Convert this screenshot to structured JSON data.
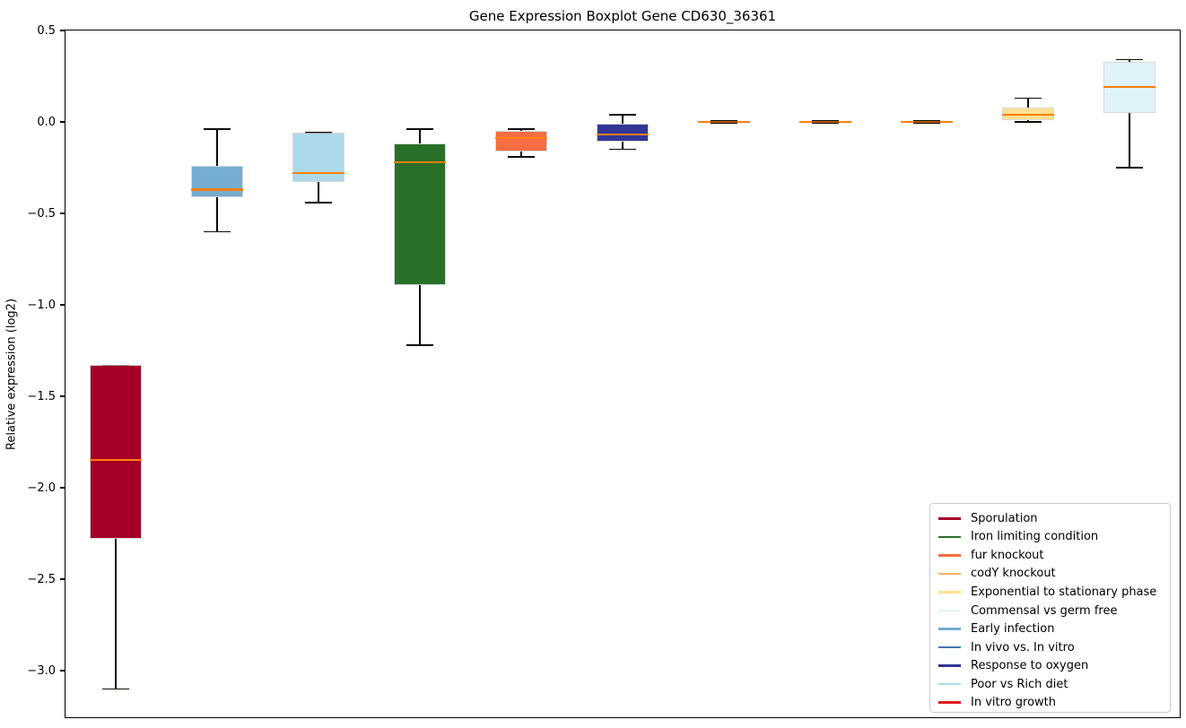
{
  "title": "Gene Expression Boxplot Gene CD630_36361",
  "chart_data": {
    "type": "boxplot",
    "title": "Gene Expression Boxplot Gene CD630_36361",
    "xlabel": "",
    "ylabel": "Relative expression (log2)",
    "ylim": [
      -3.26,
      0.5
    ],
    "yticks": [
      0.5,
      0.0,
      -0.5,
      -1.0,
      -1.5,
      -2.0,
      -2.5,
      -3.0
    ],
    "grid": false,
    "legend_position": "lower right",
    "median_color": "#ff7f0e",
    "whisker_color": "#000000",
    "box_edge_color": "#d9d9d9",
    "series": [
      {
        "name": "Sporulation",
        "color": "#a50026",
        "whisker_low": -3.1,
        "q1": -2.28,
        "median": -1.85,
        "q3": -1.33,
        "whisker_high": -1.33
      },
      {
        "name": "Early infection",
        "color": "#74add1",
        "whisker_low": -0.6,
        "q1": -0.41,
        "median": -0.37,
        "q3": -0.24,
        "whisker_high": -0.04
      },
      {
        "name": "Poor vs Rich diet",
        "color": "#abd9e9",
        "whisker_low": -0.44,
        "q1": -0.33,
        "median": -0.28,
        "q3": -0.06,
        "whisker_high": -0.06
      },
      {
        "name": "Iron limiting condition",
        "color": "#287028",
        "whisker_low": -1.22,
        "q1": -0.89,
        "median": -0.22,
        "q3": -0.12,
        "whisker_high": -0.04
      },
      {
        "name": "fur knockout",
        "color": "#f46d43",
        "whisker_low": -0.19,
        "q1": -0.16,
        "median": -0.09,
        "q3": -0.05,
        "whisker_high": -0.04
      },
      {
        "name": "Response to oxygen",
        "color": "#313695",
        "whisker_low": -0.15,
        "q1": -0.11,
        "median": -0.07,
        "q3": -0.01,
        "whisker_high": 0.04
      },
      {
        "name": "codY knockout",
        "color": "#fdae61",
        "whisker_low": -0.005,
        "q1": -0.005,
        "median": 0.0,
        "q3": 0.005,
        "whisker_high": 0.005
      },
      {
        "name": "In vivo vs. In vitro",
        "color": "#4575b4",
        "whisker_low": -0.005,
        "q1": -0.005,
        "median": 0.0,
        "q3": 0.005,
        "whisker_high": 0.005
      },
      {
        "name": "In vitro growth",
        "color": "#e41a1c",
        "whisker_low": -0.005,
        "q1": -0.005,
        "median": 0.0,
        "q3": 0.005,
        "whisker_high": 0.005
      },
      {
        "name": "Exponential to stationary phase",
        "color": "#fee090",
        "whisker_low": 0.0,
        "q1": 0.01,
        "median": 0.04,
        "q3": 0.08,
        "whisker_high": 0.13
      },
      {
        "name": "Commensal vs germ free",
        "color": "#e0f3f8",
        "whisker_low": -0.25,
        "q1": 0.05,
        "median": 0.19,
        "q3": 0.33,
        "whisker_high": 0.34
      }
    ],
    "legend": [
      {
        "label": "Sporulation",
        "color": "#a50026"
      },
      {
        "label": "Iron limiting condition",
        "color": "#287028"
      },
      {
        "label": "fur knockout",
        "color": "#f46d43"
      },
      {
        "label": "codY knockout",
        "color": "#fdae61"
      },
      {
        "label": "Exponential to stationary phase",
        "color": "#fee090"
      },
      {
        "label": "Commensal vs germ free",
        "color": "#e0f3f8"
      },
      {
        "label": "Early infection",
        "color": "#74add1"
      },
      {
        "label": "In vivo vs. In vitro",
        "color": "#4575b4"
      },
      {
        "label": "Response to oxygen",
        "color": "#313695"
      },
      {
        "label": "Poor vs Rich diet",
        "color": "#abd9e9"
      },
      {
        "label": "In vitro growth",
        "color": "#e41a1c"
      }
    ]
  }
}
